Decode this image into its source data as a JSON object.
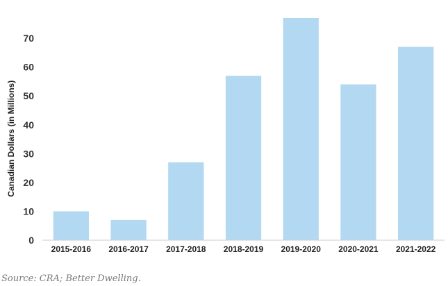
{
  "chart_data": {
    "type": "bar",
    "categories": [
      "2015-2016",
      "2016-2017",
      "2017-2018",
      "2018-2019",
      "2019-2020",
      "2020-2021",
      "2021-2022"
    ],
    "values": [
      10,
      7,
      27,
      57,
      77,
      54,
      67
    ],
    "ylabel": "Canadian Dollars (in Millions)",
    "yticks": [
      0,
      10,
      20,
      30,
      40,
      50,
      60,
      70
    ],
    "ylim": [
      0,
      80
    ],
    "grid": false,
    "bar_color": "#b3d9f2",
    "axis_color": "#cccccc"
  },
  "source_note": "Source: CRA; Better Dwelling."
}
